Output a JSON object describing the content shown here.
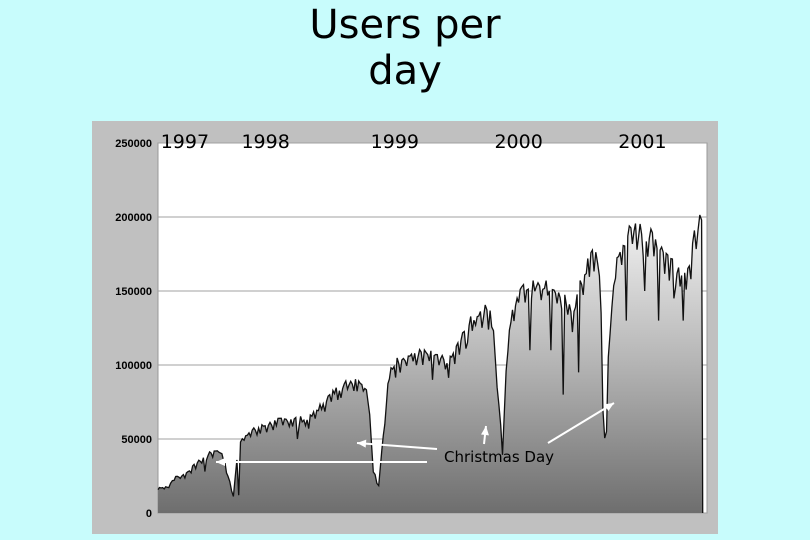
{
  "title_lines": [
    "Users per",
    "day"
  ],
  "chart_data": {
    "type": "area",
    "title": "Users per day",
    "xlabel": "",
    "ylabel": "",
    "ylim": [
      0,
      250000
    ],
    "yticks": [
      0,
      50000,
      100000,
      150000,
      200000,
      250000
    ],
    "grid": true,
    "legend": "none",
    "x_domain": [
      1996.75,
      2001.85
    ],
    "year_labels": [
      {
        "label": "1997",
        "x": 1997.0
      },
      {
        "label": "1998",
        "x": 1997.75
      },
      {
        "label": "1999",
        "x": 1998.95
      },
      {
        "label": "2000",
        "x": 2000.1
      },
      {
        "label": "2001",
        "x": 2001.25
      }
    ],
    "series": [
      {
        "x": [
          1996.75,
          1996.85,
          1996.9,
          1997.0,
          1997.1,
          1997.2,
          1997.33,
          1997.4,
          1997.45,
          1997.5,
          1997.55,
          1997.7,
          1997.85,
          1998.0,
          1998.15,
          1998.3,
          1998.45,
          1998.6,
          1998.7,
          1998.75,
          1998.8,
          1998.9,
          1999.0,
          1999.15,
          1999.3,
          1999.45,
          1999.55,
          1999.7,
          1999.85,
          1999.9,
          1999.95,
          2000.0,
          2000.1,
          2000.25,
          2000.4,
          2000.5,
          2000.6,
          2000.7,
          2000.8,
          2000.85,
          2000.9,
          2000.95,
          2001.0,
          2001.1,
          2001.2,
          2001.3,
          2001.4,
          2001.5,
          2001.6,
          2001.7,
          2001.75,
          2001.8,
          2001.81
        ],
        "values": [
          17000,
          18000,
          24000,
          26000,
          33000,
          39000,
          44000,
          26000,
          12000,
          47000,
          53000,
          58000,
          62000,
          64000,
          63000,
          76000,
          86000,
          91000,
          84000,
          30000,
          20000,
          96000,
          105000,
          108000,
          107000,
          101000,
          115000,
          135000,
          138000,
          90000,
          42000,
          120000,
          153000,
          157000,
          154000,
          147000,
          135000,
          160000,
          178000,
          170000,
          55000,
          130000,
          167000,
          188000,
          192000,
          188000,
          183000,
          172000,
          165000,
          168000,
          196000,
          198000,
          0
        ],
        "spike_x": [
          1997.43,
          1997.5,
          1998.77,
          1998.79,
          1999.93,
          1999.95,
          2000.89,
          2000.91,
          1997.18,
          1998.05,
          1999.3,
          1999.62,
          2000.2,
          2000.4,
          2000.52,
          2000.65,
          2001.1,
          2001.27,
          2001.4,
          2001.55,
          2001.63
        ],
        "spike_values": [
          15000,
          12000,
          30000,
          20000,
          60000,
          42000,
          70000,
          55000,
          28000,
          50000,
          90000,
          115000,
          110000,
          110000,
          80000,
          95000,
          130000,
          150000,
          130000,
          145000,
          130000
        ]
      }
    ],
    "annotation": {
      "text": "Christmas Day",
      "targets": [
        1997.45,
        1998.77,
        1999.95,
        2000.9
      ]
    }
  }
}
